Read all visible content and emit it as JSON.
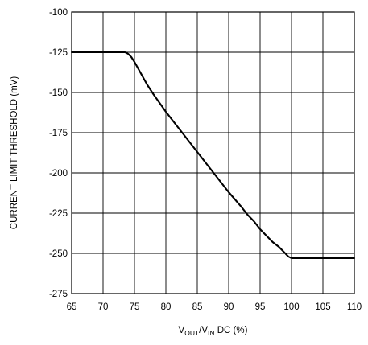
{
  "chart_data": {
    "type": "line",
    "title": "",
    "xlabel": {
      "base1": "V",
      "sub1": "OUT",
      "mid": "/V",
      "sub2": "IN",
      "tail": " DC (%)"
    },
    "ylabel": "CURRENT LIMIT THRESHOLD (mV)",
    "xlim": [
      65,
      110
    ],
    "ylim": [
      -275,
      -100
    ],
    "xticks": [
      65,
      70,
      75,
      80,
      85,
      90,
      95,
      100,
      105,
      110
    ],
    "yticks": [
      -100,
      -125,
      -150,
      -175,
      -200,
      -225,
      -250,
      -275
    ],
    "xtick_labels": [
      "65",
      "70",
      "75",
      "80",
      "85",
      "90",
      "95",
      "100",
      "105",
      "110"
    ],
    "ytick_labels": [
      "-100",
      "-125",
      "-150",
      "-175",
      "-200",
      "-225",
      "-250",
      "-275"
    ],
    "grid": true,
    "series": [
      {
        "x": [
          65,
          73.5,
          74,
          74.5,
          75,
          76,
          77,
          78,
          80,
          82,
          84,
          86,
          88,
          90,
          92,
          93,
          94,
          95,
          96,
          97,
          98,
          99,
          99.5,
          100,
          105,
          110
        ],
        "y": [
          -125,
          -125,
          -126,
          -128,
          -131,
          -138,
          -145,
          -151,
          -162,
          -172,
          -182,
          -192,
          -202,
          -212,
          -221,
          -226,
          -230,
          -235,
          -239,
          -243,
          -246,
          -250,
          -252,
          -253,
          -253,
          -253
        ]
      }
    ]
  }
}
